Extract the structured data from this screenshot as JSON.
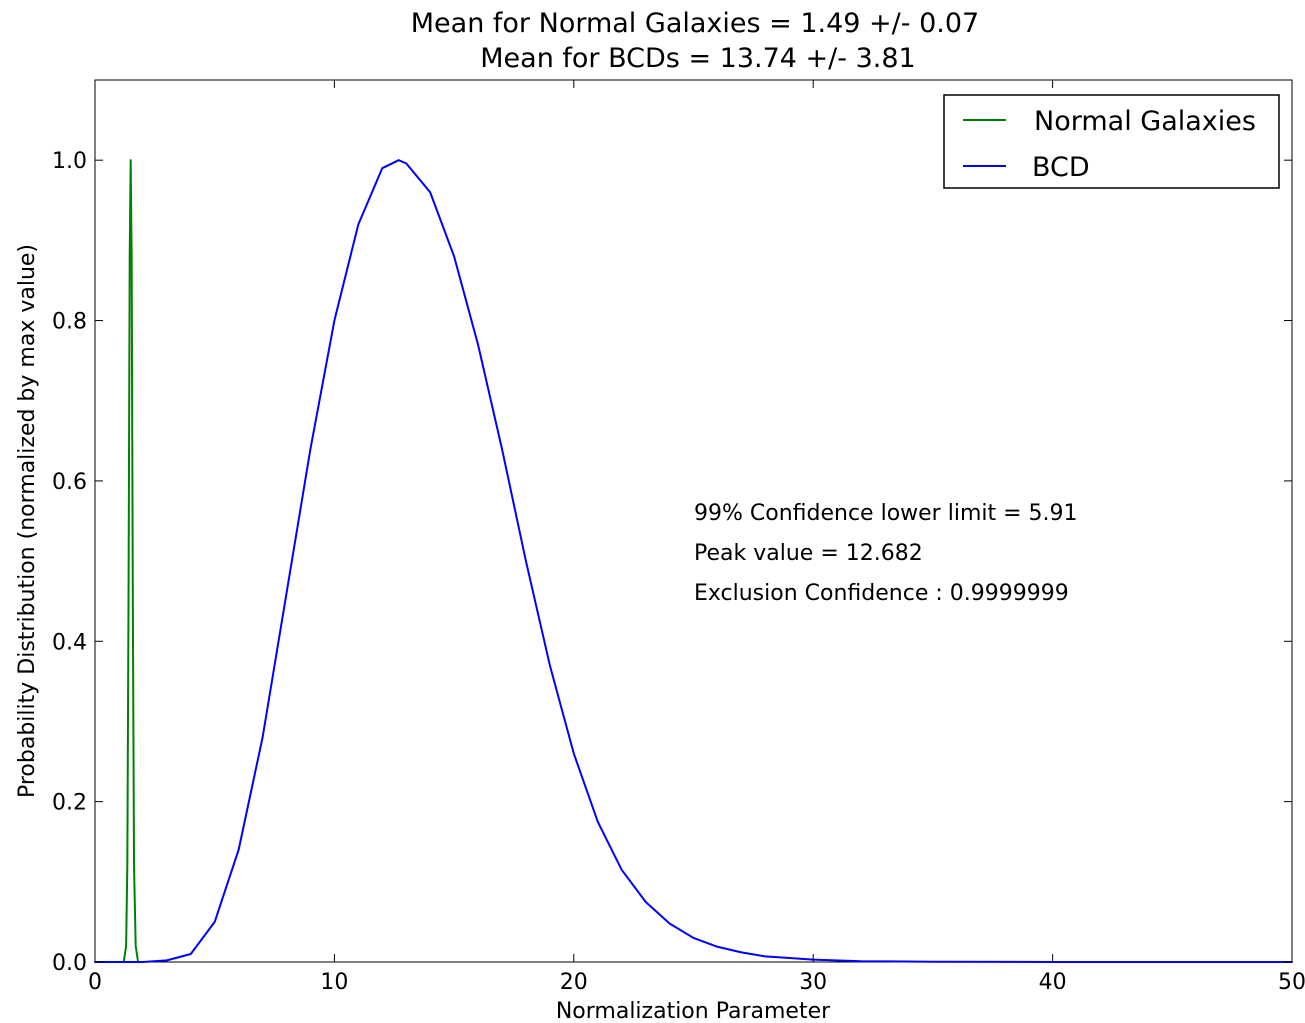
{
  "chart_data": {
    "type": "line",
    "title": "Mean for Normal Galaxies = 1.49 +/- 0.07",
    "subtitle": "Mean for BCDs = 13.74 +/- 3.81",
    "xlabel": "Normalization Parameter",
    "ylabel": "Probability Distribution (normalized by max value)",
    "xlim": [
      0,
      50
    ],
    "ylim": [
      0,
      1.1
    ],
    "xticks": [
      0,
      10,
      20,
      30,
      40,
      50
    ],
    "xtick_labels": [
      "0",
      "10",
      "20",
      "30",
      "40",
      "50"
    ],
    "yticks": [
      0,
      0.2,
      0.4,
      0.6,
      0.8,
      1.0
    ],
    "ytick_labels": [
      "0.0",
      "0.2",
      "0.4",
      "0.6",
      "0.8",
      "1.0"
    ],
    "grid": false,
    "legend": {
      "placement": "top-right",
      "entries": [
        "Normal Galaxies",
        "BCD"
      ]
    },
    "series": [
      {
        "name": "Normal Galaxies",
        "color": "#008000",
        "x": [
          1.2,
          1.3,
          1.35,
          1.4,
          1.45,
          1.49,
          1.53,
          1.58,
          1.63,
          1.7,
          1.8
        ],
        "y": [
          0.0,
          0.02,
          0.12,
          0.45,
          0.88,
          1.0,
          0.88,
          0.45,
          0.12,
          0.02,
          0.0
        ]
      },
      {
        "name": "BCD",
        "color": "#0000ff",
        "x": [
          0,
          2,
          3,
          4,
          5,
          6,
          7,
          8,
          9,
          10,
          11,
          12,
          12.682,
          13,
          14,
          15,
          16,
          17,
          18,
          19,
          20,
          21,
          22,
          23,
          24,
          25,
          26,
          27,
          28,
          30,
          32,
          35,
          40,
          45,
          50
        ],
        "y": [
          0.0,
          0.0,
          0.002,
          0.01,
          0.05,
          0.14,
          0.28,
          0.46,
          0.64,
          0.8,
          0.92,
          0.99,
          1.0,
          0.996,
          0.96,
          0.88,
          0.77,
          0.64,
          0.5,
          0.37,
          0.26,
          0.175,
          0.115,
          0.075,
          0.048,
          0.03,
          0.019,
          0.012,
          0.007,
          0.003,
          0.001,
          0.0003,
          0.0,
          0.0,
          0.0
        ]
      }
    ],
    "annotations": [
      "99% Confidence lower limit = 5.91",
      "Peak value = 12.682",
      "Exclusion Confidence : 0.9999999"
    ]
  }
}
